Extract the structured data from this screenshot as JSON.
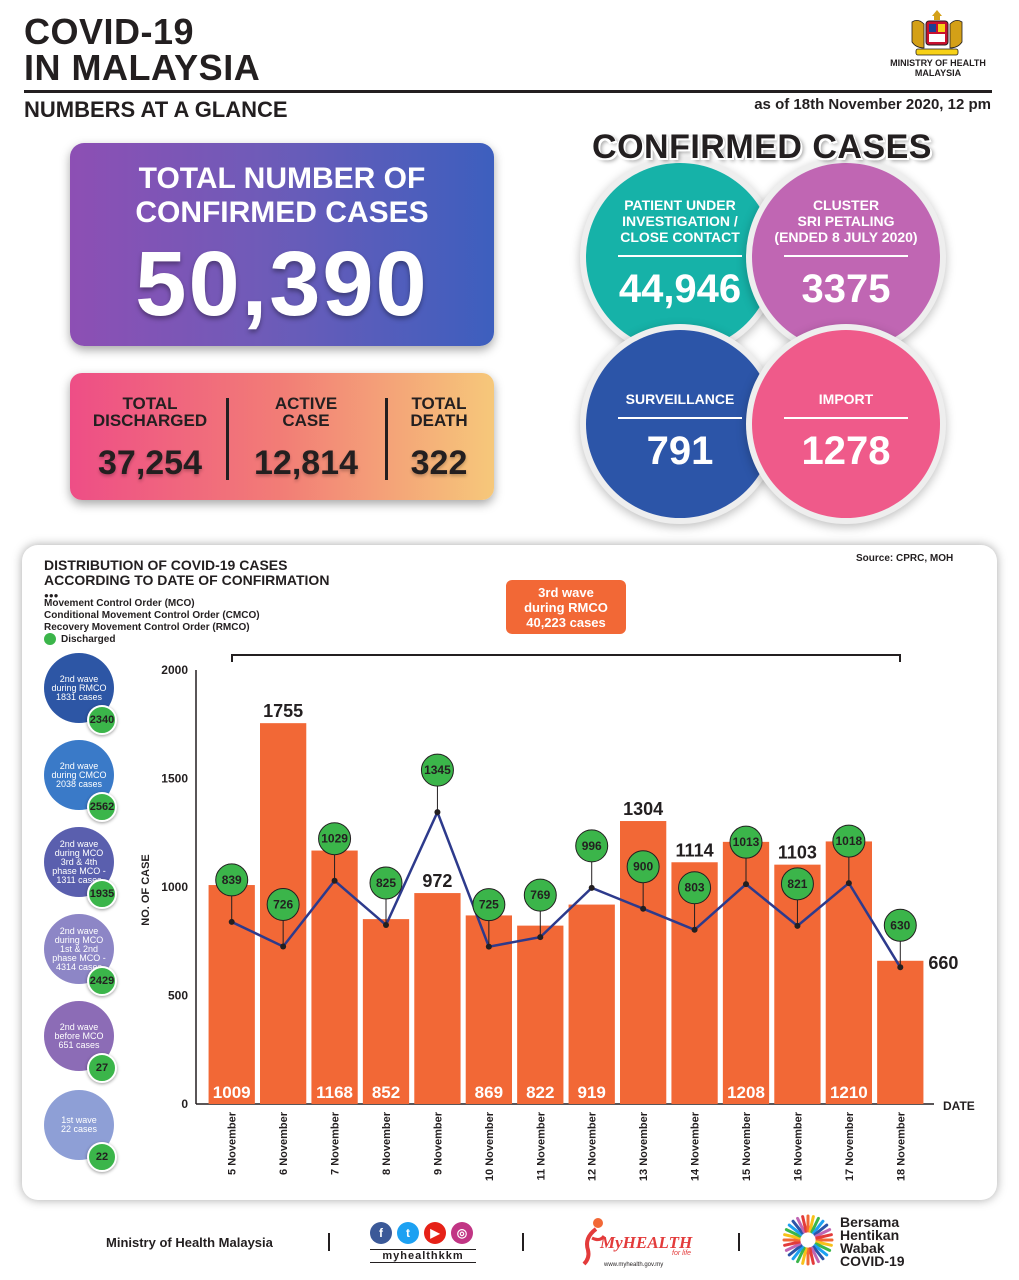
{
  "header": {
    "title_line1": "COVID-19",
    "title_line2": "IN MALAYSIA",
    "subtitle": "NUMBERS AT A GLANCE",
    "as_of": "as of 18th November 2020, 12 pm",
    "ministry_line1": "MINISTRY OF HEALTH",
    "ministry_line2": "MALAYSIA"
  },
  "total": {
    "label_line1": "TOTAL NUMBER OF",
    "label_line2": "CONFIRMED CASES",
    "value": "50,390"
  },
  "stats": {
    "discharged_label1": "TOTAL",
    "discharged_label2": "DISCHARGED",
    "discharged_value": "37,254",
    "active_label1": "ACTIVE",
    "active_label2": "CASE",
    "active_value": "12,814",
    "death_label1": "TOTAL",
    "death_label2": "DEATH",
    "death_value": "322"
  },
  "confirmed": {
    "heading": "CONFIRMED CASES",
    "pui_label1": "PATIENT UNDER",
    "pui_label2": "INVESTIGATION /",
    "pui_label3": "CLOSE CONTACT",
    "pui_value": "44,946",
    "cluster_label1": "CLUSTER",
    "cluster_label2": "SRI PETALING",
    "cluster_label3": "(ENDED 8 JULY 2020)",
    "cluster_value": "3375",
    "surveillance_label": "SURVEILLANCE",
    "surveillance_value": "791",
    "import_label": "IMPORT",
    "import_value": "1278",
    "colors": {
      "pui": "#16b2a8",
      "cluster": "#c066b3",
      "surveillance": "#2c55a8",
      "import": "#ef5a8a"
    }
  },
  "chart": {
    "title_line1": "DISTRIBUTION OF COVID-19 CASES",
    "title_line2": "ACCORDING TO DATE OF CONFIRMATION",
    "source": "Source: CPRC, MOH",
    "legend_mco": "Movement Control Order (MCO)",
    "legend_cmco": "Conditional Movement Control Order (CMCO)",
    "legend_rmco": "Recovery Movement Control Order (RMCO)",
    "legend_discharged": "Discharged",
    "wave3_line1": "3rd wave",
    "wave3_line2": "during RMCO",
    "wave3_line3": "40,223 cases"
  },
  "waves": [
    {
      "l1": "2nd wave",
      "l2": "during RMCO",
      "l3": "1831 cases",
      "l4": "",
      "l5": "",
      "discharged": "2340",
      "color": "#2d56a5"
    },
    {
      "l1": "2nd wave",
      "l2": "during CMCO",
      "l3": "2038 cases",
      "l4": "",
      "l5": "",
      "discharged": "2562",
      "color": "#3a7ac8"
    },
    {
      "l1": "2nd wave",
      "l2": "during MCO",
      "l3": "3rd & 4th",
      "l4": "phase MCO -",
      "l5": "1311 cases",
      "discharged": "1935",
      "color": "#5a5fae"
    },
    {
      "l1": "2nd wave",
      "l2": "during MCO",
      "l3": "1st & 2nd",
      "l4": "phase MCO -",
      "l5": "4314 cases",
      "discharged": "2429",
      "color": "#8d86c6"
    },
    {
      "l1": "2nd wave",
      "l2": "before MCO",
      "l3": "651 cases",
      "l4": "",
      "l5": "",
      "discharged": "27",
      "color": "#8c6cb6"
    },
    {
      "l1": "1st wave",
      "l2": "22 cases",
      "l3": "",
      "l4": "",
      "l5": "",
      "discharged": "22",
      "color": "#8e9fd6"
    }
  ],
  "chart_data": {
    "type": "bar",
    "categories": [
      "5 November",
      "6 November",
      "7 November",
      "8 November",
      "9 November",
      "10 November",
      "11 November",
      "12 November",
      "13 November",
      "14 November",
      "15 November",
      "16 November",
      "17 November",
      "18 November"
    ],
    "series": [
      {
        "values": [
          1009,
          1755,
          1168,
          852,
          972,
          869,
          822,
          919,
          1304,
          1114,
          1208,
          1103,
          1210,
          660
        ],
        "color": "#f26836"
      },
      {
        "name": "Discharged",
        "type": "line",
        "values": [
          839,
          726,
          1029,
          825,
          1345,
          725,
          769,
          996,
          900,
          803,
          1013,
          821,
          1018,
          630
        ],
        "color": "#2d3a8c"
      }
    ],
    "bar_label_outside": [
      "",
      "1755",
      "",
      "",
      "972",
      "",
      "",
      "",
      "1304",
      "1114",
      "",
      "1103",
      "",
      "660"
    ],
    "bar_label_inside": [
      "1009",
      "",
      "1168",
      "852",
      "",
      "869",
      "822",
      "919",
      "",
      "",
      "1208",
      "",
      "1210",
      ""
    ],
    "y_ticks": [
      "2000",
      "1500",
      "1000",
      "500",
      "0"
    ],
    "ylabel": "NO. OF CASE",
    "xlabel": "DATE",
    "ylim": [
      0,
      2000
    ],
    "grid": false
  },
  "footer": {
    "ministry": "Ministry of Health Malaysia",
    "handle": "myhealthkkm",
    "myhealth": "MyHEALTH",
    "myhealth_tag": "for life",
    "myhealth_url": "www.myhealth.gov.my",
    "bersama1": "Bersama",
    "bersama2": "Hentikan",
    "bersama3": "Wabak",
    "bersama4": "COVID-19",
    "social_icons": [
      "facebook-icon",
      "twitter-icon",
      "youtube-icon",
      "instagram-icon"
    ]
  }
}
